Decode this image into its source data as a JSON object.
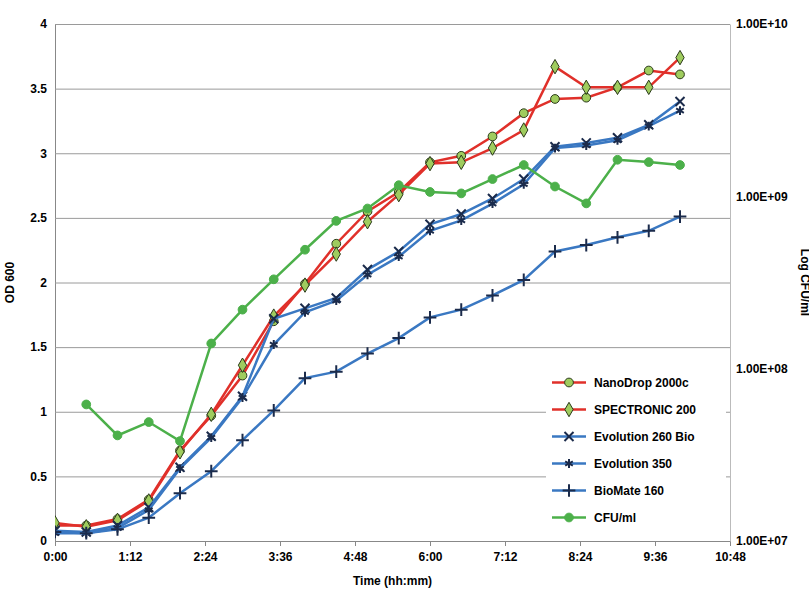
{
  "chart_data": {
    "type": "line",
    "x_label": "Time (hh:mm)",
    "y_label": "OD 600",
    "y2_label": "Log CFU/ml",
    "x": [
      0,
      30,
      60,
      90,
      120,
      150,
      180,
      210,
      240,
      270,
      300,
      330,
      360,
      390,
      420,
      450,
      480,
      510,
      540,
      570,
      600
    ],
    "xlim": [
      0,
      648
    ],
    "xticks": [
      {
        "value": 0,
        "label": "0:00"
      },
      {
        "value": 72,
        "label": "1:12"
      },
      {
        "value": 144,
        "label": "2:24"
      },
      {
        "value": 216,
        "label": "3:36"
      },
      {
        "value": 288,
        "label": "4:48"
      },
      {
        "value": 360,
        "label": "6:00"
      },
      {
        "value": 432,
        "label": "7:12"
      },
      {
        "value": 504,
        "label": "8:24"
      },
      {
        "value": 576,
        "label": "9:36"
      },
      {
        "value": 648,
        "label": "10:48"
      }
    ],
    "ylim": [
      0,
      4
    ],
    "yticks": [
      0,
      0.5,
      1,
      1.5,
      2,
      2.5,
      3,
      3.5,
      4
    ],
    "y2lim": [
      10000000,
      10000000000
    ],
    "y2ticks": [
      {
        "value": 10000000,
        "label": "1.00E+07"
      },
      {
        "value": 100000000,
        "label": "1.00E+08"
      },
      {
        "value": 1000000000,
        "label": "1.00E+09"
      },
      {
        "value": 10000000000,
        "label": "1.00E+10"
      }
    ],
    "log": "y2",
    "grid": true,
    "legend": "lower right",
    "series": [
      {
        "name": "NanoDrop 2000c",
        "color": "#e0302a",
        "marker": "circle",
        "values": [
          0.12,
          0.12,
          0.17,
          0.32,
          0.7,
          0.97,
          1.28,
          1.7,
          1.99,
          2.3,
          2.55,
          2.7,
          2.93,
          2.98,
          3.13,
          3.31,
          3.42,
          3.43,
          3.51,
          3.64,
          3.61
        ]
      },
      {
        "name": "SPECTRONIC 200",
        "color": "#e0302a",
        "marker": "diamond",
        "values": [
          0.14,
          0.11,
          0.16,
          0.31,
          0.69,
          0.98,
          1.36,
          1.74,
          1.98,
          2.22,
          2.47,
          2.68,
          2.92,
          2.93,
          3.04,
          3.18,
          3.67,
          3.51,
          3.51,
          3.51,
          3.74
        ]
      },
      {
        "name": "Evolution 260 Bio",
        "color": "#3a78c2",
        "marker": "x",
        "values": [
          0.08,
          0.07,
          0.12,
          0.26,
          0.57,
          0.81,
          1.12,
          1.72,
          1.8,
          1.88,
          2.1,
          2.24,
          2.45,
          2.53,
          2.65,
          2.8,
          3.05,
          3.08,
          3.12,
          3.22,
          3.4
        ]
      },
      {
        "name": "Evolution 350",
        "color": "#3a78c2",
        "marker": "asterisk",
        "values": [
          0.06,
          0.06,
          0.1,
          0.24,
          0.56,
          0.8,
          1.11,
          1.52,
          1.77,
          1.86,
          2.06,
          2.2,
          2.4,
          2.48,
          2.61,
          2.76,
          3.04,
          3.06,
          3.1,
          3.21,
          3.33
        ]
      },
      {
        "name": "BioMate 160",
        "color": "#3a78c2",
        "marker": "plus",
        "values": [
          0.07,
          0.06,
          0.09,
          0.18,
          0.37,
          0.54,
          0.78,
          1.01,
          1.26,
          1.31,
          1.45,
          1.57,
          1.73,
          1.79,
          1.9,
          2.02,
          2.24,
          2.29,
          2.35,
          2.4,
          2.51
        ]
      },
      {
        "name": "CFU/ml",
        "color": "#4cb04a",
        "marker": "circle",
        "axis": "y2",
        "values": [
          null,
          62000000,
          41000000,
          49000000,
          38000000,
          140000000,
          220000000,
          330000000,
          490000000,
          720000000,
          850000000,
          1160000000,
          1060000000,
          1040000000,
          1260000000,
          1520000000,
          1140000000,
          910000000,
          1630000000,
          1580000000,
          1520000000
        ]
      }
    ]
  }
}
